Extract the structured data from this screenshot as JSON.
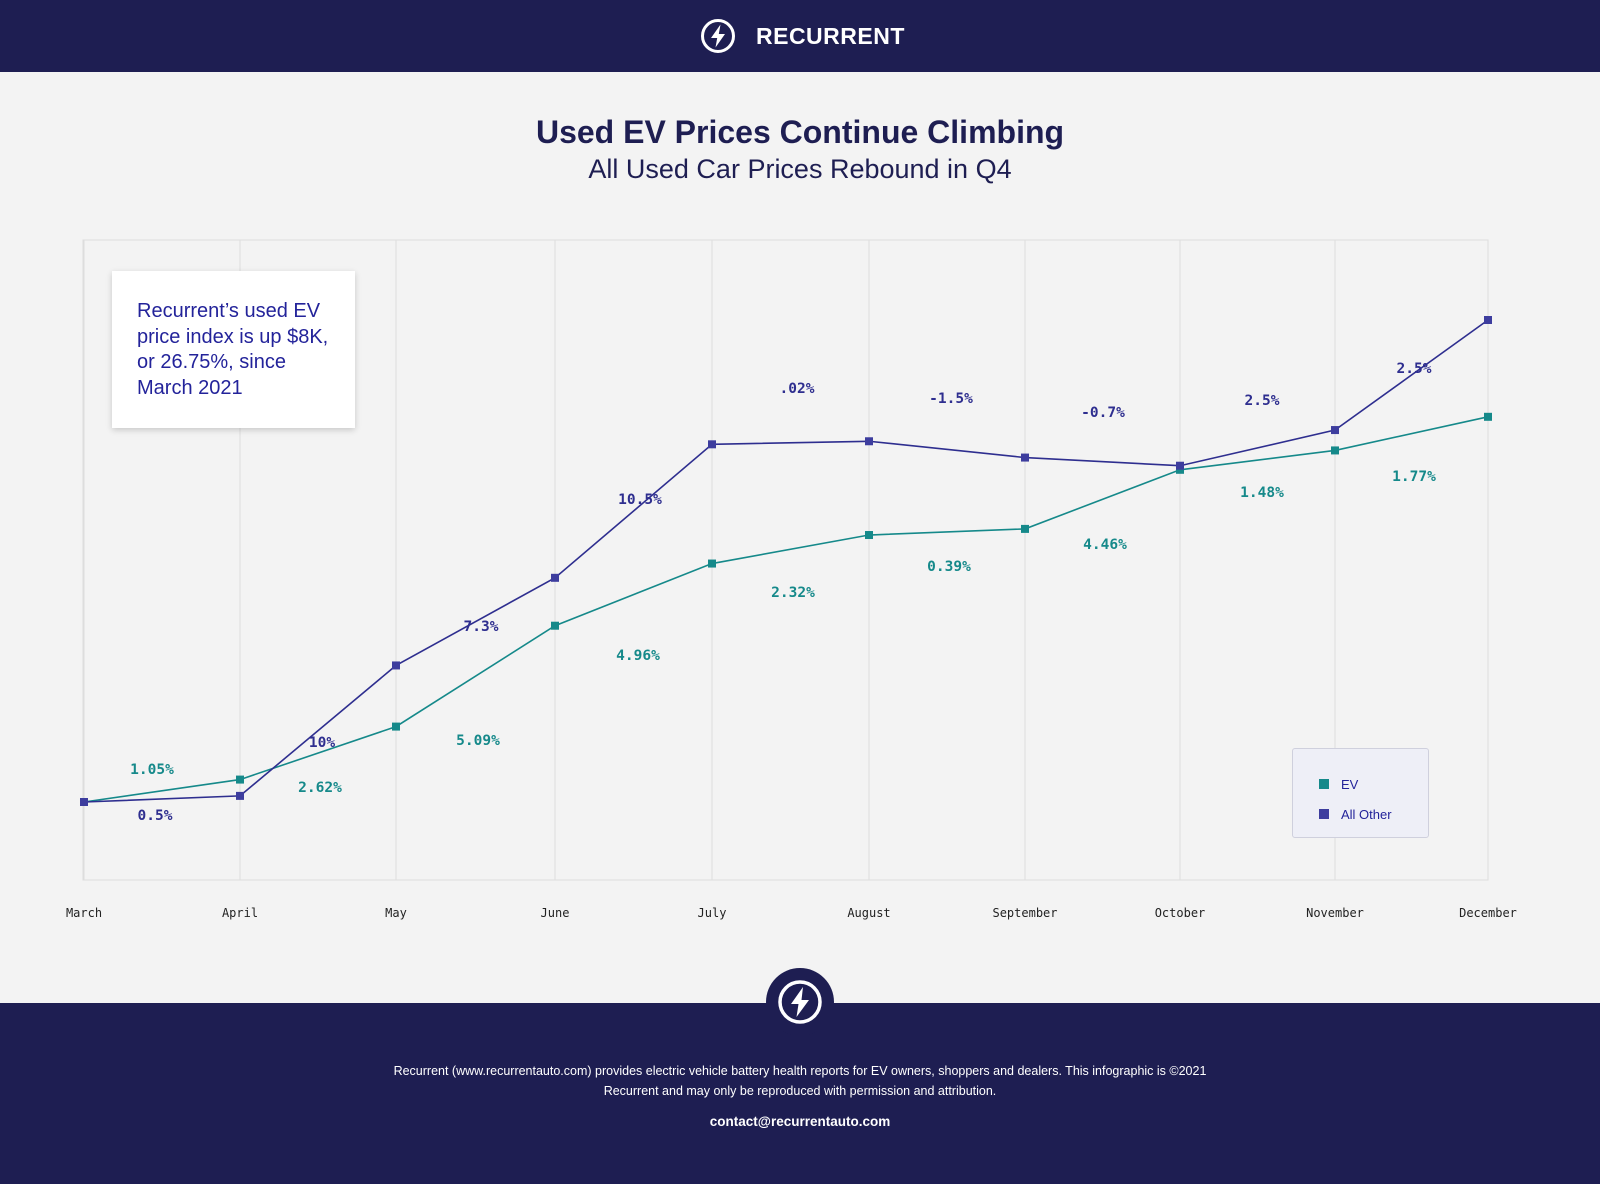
{
  "header": {
    "brand": "RECURRENT",
    "logo_icon": "bolt-circle-icon"
  },
  "title": "Used EV Prices Continue Climbing",
  "subtitle": "All Used Car Prices Rebound in Q4",
  "callout": "Recurrent’s used EV price index is up $8K, or 26.75%, since March 2021",
  "colors": {
    "navy": "#1e1e52",
    "ev": "#15898a",
    "all_other": "#2e2e8f",
    "all_other_marker": "#3d3d9e",
    "background": "#f3f3f3"
  },
  "chart_data": {
    "type": "line",
    "title": "Used EV Prices Continue Climbing",
    "subtitle": "All Used Car Prices Rebound in Q4",
    "categories": [
      "March",
      "April",
      "May",
      "June",
      "July",
      "August",
      "September",
      "October",
      "November",
      "December"
    ],
    "ylim": [
      0,
      60
    ],
    "grid": "vertical",
    "legend_position": "bottom-right",
    "series": [
      {
        "name": "EV",
        "color": "#15898a",
        "values": [
          10.0,
          12.2,
          17.4,
          27.3,
          33.4,
          36.2,
          36.8,
          42.6,
          44.5,
          47.8
        ],
        "change_labels": [
          "1.05%",
          "2.62%",
          "5.09%",
          "4.96%",
          "2.32%",
          "0.39%",
          "4.46%",
          "1.48%",
          "1.77%"
        ]
      },
      {
        "name": "All Other",
        "color": "#2e2e8f",
        "values": [
          10.0,
          10.6,
          23.4,
          32.0,
          45.1,
          45.4,
          43.8,
          43.0,
          46.5,
          57.3
        ],
        "change_labels": [
          "0.5%",
          "10%",
          "7.3%",
          "10.5%",
          ".02%",
          "-1.5%",
          "-0.7%",
          "2.5%",
          "2.5%"
        ]
      }
    ]
  },
  "legend": [
    {
      "label": "EV",
      "color": "#15898a"
    },
    {
      "label": "All Other",
      "color": "#3d3d9e"
    }
  ],
  "footer": {
    "text": "Recurrent (www.recurrentauto.com) provides electric vehicle battery health reports for EV owners, shoppers and dealers. This infographic is ©2021 Recurrent and may only be reproduced with permission and attribution.",
    "contact": "contact@recurrentauto.com",
    "logo_icon": "bolt-circle-icon"
  }
}
